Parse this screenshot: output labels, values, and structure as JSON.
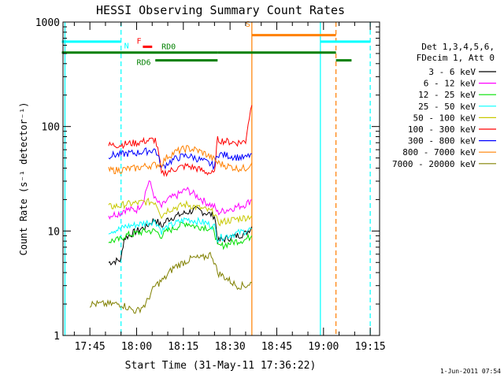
{
  "chart_data": {
    "type": "line",
    "title": "HESSI Observing Summary Count Rates",
    "xlabel": "Start Time (31-May-11 17:36:22)",
    "ylabel": "Count Rate (s⁻¹ detector⁻¹)",
    "yscale": "log",
    "ylim": [
      1,
      1000
    ],
    "xlim": [
      "17:36",
      "19:18"
    ],
    "x_ticks": [
      "17:45",
      "18:00",
      "18:15",
      "18:30",
      "18:45",
      "19:00",
      "19:15"
    ],
    "y_ticks": [
      "1",
      "10",
      "100",
      "1000"
    ],
    "timestamp": "1-Jun-2011 07:54",
    "legend_header": [
      "Det 1,3,4,5,6,",
      "FDecim 1, Att 0"
    ],
    "legend_position": "right",
    "series": [
      {
        "name": "3 - 6 keV",
        "color": "#000000",
        "x": [
          "17:51",
          "17:55",
          "17:56",
          "18:00",
          "18:03",
          "18:06",
          "18:08",
          "18:10",
          "18:13",
          "18:16",
          "18:19",
          "18:22",
          "18:25",
          "18:26",
          "18:29",
          "18:32",
          "18:35",
          "18:37"
        ],
        "values": [
          5,
          5.3,
          8.5,
          10,
          11,
          13,
          11,
          13,
          14,
          15,
          16,
          15,
          14,
          8,
          8.5,
          9,
          9.5,
          11
        ]
      },
      {
        "name": "6 - 12 keV",
        "color": "#ff00ff",
        "x": [
          "17:51",
          "17:55",
          "17:56",
          "18:00",
          "18:02",
          "18:04",
          "18:06",
          "18:08",
          "18:10",
          "18:13",
          "18:16",
          "18:19",
          "18:22",
          "18:25",
          "18:26",
          "18:29",
          "18:32",
          "18:35",
          "18:37"
        ],
        "values": [
          14,
          15,
          16,
          16,
          19,
          30,
          20,
          17,
          20,
          22,
          25,
          22,
          19,
          17,
          15,
          16,
          17,
          18,
          20
        ]
      },
      {
        "name": "12 - 25 keV",
        "color": "#00e000",
        "x": [
          "17:51",
          "17:55",
          "17:56",
          "18:00",
          "18:03",
          "18:06",
          "18:08",
          "18:10",
          "18:13",
          "18:16",
          "18:19",
          "18:22",
          "18:25",
          "18:26",
          "18:29",
          "18:32",
          "18:35",
          "18:37"
        ],
        "values": [
          8,
          8.3,
          9,
          9.5,
          10,
          10,
          9,
          10,
          11,
          12,
          11,
          11,
          10,
          7,
          7.5,
          8,
          8.3,
          9
        ]
      },
      {
        "name": "25 - 50 keV",
        "color": "#00ffff",
        "x": [
          "17:51",
          "17:55",
          "17:56",
          "18:00",
          "18:03",
          "18:06",
          "18:08",
          "18:10",
          "18:13",
          "18:16",
          "18:19",
          "18:22",
          "18:25",
          "18:26",
          "18:29",
          "18:32",
          "18:35",
          "18:37"
        ],
        "values": [
          10,
          10.5,
          11,
          11.5,
          12,
          12.5,
          10,
          11,
          12,
          13,
          12.5,
          12,
          11,
          8.5,
          9,
          9.5,
          10,
          10.5
        ]
      },
      {
        "name": "50 - 100 keV",
        "color": "#c8c800",
        "x": [
          "17:51",
          "17:55",
          "17:56",
          "18:00",
          "18:03",
          "18:06",
          "18:08",
          "18:10",
          "18:13",
          "18:16",
          "18:19",
          "18:22",
          "18:25",
          "18:26",
          "18:29",
          "18:32",
          "18:35",
          "18:37"
        ],
        "values": [
          17,
          17.5,
          18,
          18.5,
          19,
          19,
          14,
          16,
          17,
          18,
          17,
          16,
          15,
          12,
          12.5,
          13,
          13.5,
          14
        ]
      },
      {
        "name": "100 - 300 keV",
        "color": "#ff0000",
        "x": [
          "17:51",
          "17:55",
          "17:56",
          "18:00",
          "18:03",
          "18:06",
          "18:08",
          "18:10",
          "18:13",
          "18:16",
          "18:19",
          "18:22",
          "18:25",
          "18:26",
          "18:29",
          "18:32",
          "18:35",
          "18:37"
        ],
        "values": [
          66,
          67,
          68,
          70,
          73,
          75,
          35,
          37,
          40,
          42,
          40,
          37,
          35,
          75,
          72,
          70,
          72,
          160
        ]
      },
      {
        "name": "300 - 800 keV",
        "color": "#0000ff",
        "x": [
          "17:51",
          "17:55",
          "17:56",
          "18:00",
          "18:03",
          "18:06",
          "18:08",
          "18:10",
          "18:13",
          "18:16",
          "18:19",
          "18:22",
          "18:25",
          "18:26",
          "18:29",
          "18:32",
          "18:35",
          "18:37"
        ],
        "values": [
          53,
          54,
          55,
          56,
          58,
          60,
          40,
          45,
          50,
          53,
          50,
          46,
          42,
          55,
          53,
          51,
          50,
          55
        ]
      },
      {
        "name": "800 - 7000 keV",
        "color": "#ff8000",
        "x": [
          "17:51",
          "17:55",
          "17:56",
          "18:00",
          "18:03",
          "18:06",
          "18:08",
          "18:10",
          "18:13",
          "18:16",
          "18:19",
          "18:22",
          "18:25",
          "18:26",
          "18:29",
          "18:32",
          "18:35",
          "18:37"
        ],
        "values": [
          38,
          38.5,
          39,
          40,
          42,
          43,
          44,
          52,
          58,
          62,
          60,
          55,
          48,
          45,
          42,
          40,
          40,
          45
        ]
      },
      {
        "name": "7000 - 20000 keV",
        "color": "#808000",
        "x": [
          "17:45",
          "17:50",
          "17:55",
          "17:58",
          "18:00",
          "18:03",
          "18:06",
          "18:09",
          "18:12",
          "18:15",
          "18:18",
          "18:21",
          "18:24",
          "18:26",
          "18:29",
          "18:32",
          "18:35",
          "18:37"
        ],
        "values": [
          2,
          2,
          2,
          1.8,
          1.7,
          2,
          3,
          3.5,
          4.5,
          5,
          5.5,
          5.5,
          6,
          4,
          3.5,
          3,
          3,
          3.2
        ]
      }
    ],
    "annotations": {
      "N": {
        "label": "N",
        "color": "#00ffff",
        "segments": [
          [
            "17:36",
            "17:55"
          ],
          [
            "18:59",
            "19:15"
          ]
        ],
        "level": 650,
        "markers": [
          "17:55",
          "19:15"
        ]
      },
      "S": {
        "label": "S",
        "color": "#ff8000",
        "segments": [
          [
            "18:37",
            "19:04"
          ]
        ],
        "level": 750,
        "markers": [
          "19:04"
        ]
      },
      "F": {
        "label": "F",
        "color": "#ff0000",
        "segments": [
          [
            "18:02",
            "18:05"
          ]
        ],
        "level": 580
      },
      "RD0": {
        "label": "RD0",
        "color": "#008000",
        "segments": [
          [
            "17:36",
            "18:26"
          ],
          [
            "18:26",
            "19:04"
          ]
        ],
        "level": 510
      },
      "RD6": {
        "label": "RD6",
        "color": "#008000",
        "segments": [
          [
            "18:06",
            "18:26"
          ],
          [
            "19:04",
            "19:09"
          ]
        ],
        "level": 430
      }
    },
    "vertical_markers": [
      {
        "x": "17:37",
        "color": "#00ffff",
        "style": "solid"
      },
      {
        "x": "17:55",
        "color": "#00ffff",
        "style": "dashed"
      },
      {
        "x": "18:37",
        "color": "#ff8000",
        "style": "solid"
      },
      {
        "x": "18:59",
        "color": "#00ffff",
        "style": "solid"
      },
      {
        "x": "19:04",
        "color": "#ff8000",
        "style": "dashed"
      },
      {
        "x": "19:15",
        "color": "#00ffff",
        "style": "dashed"
      }
    ]
  }
}
